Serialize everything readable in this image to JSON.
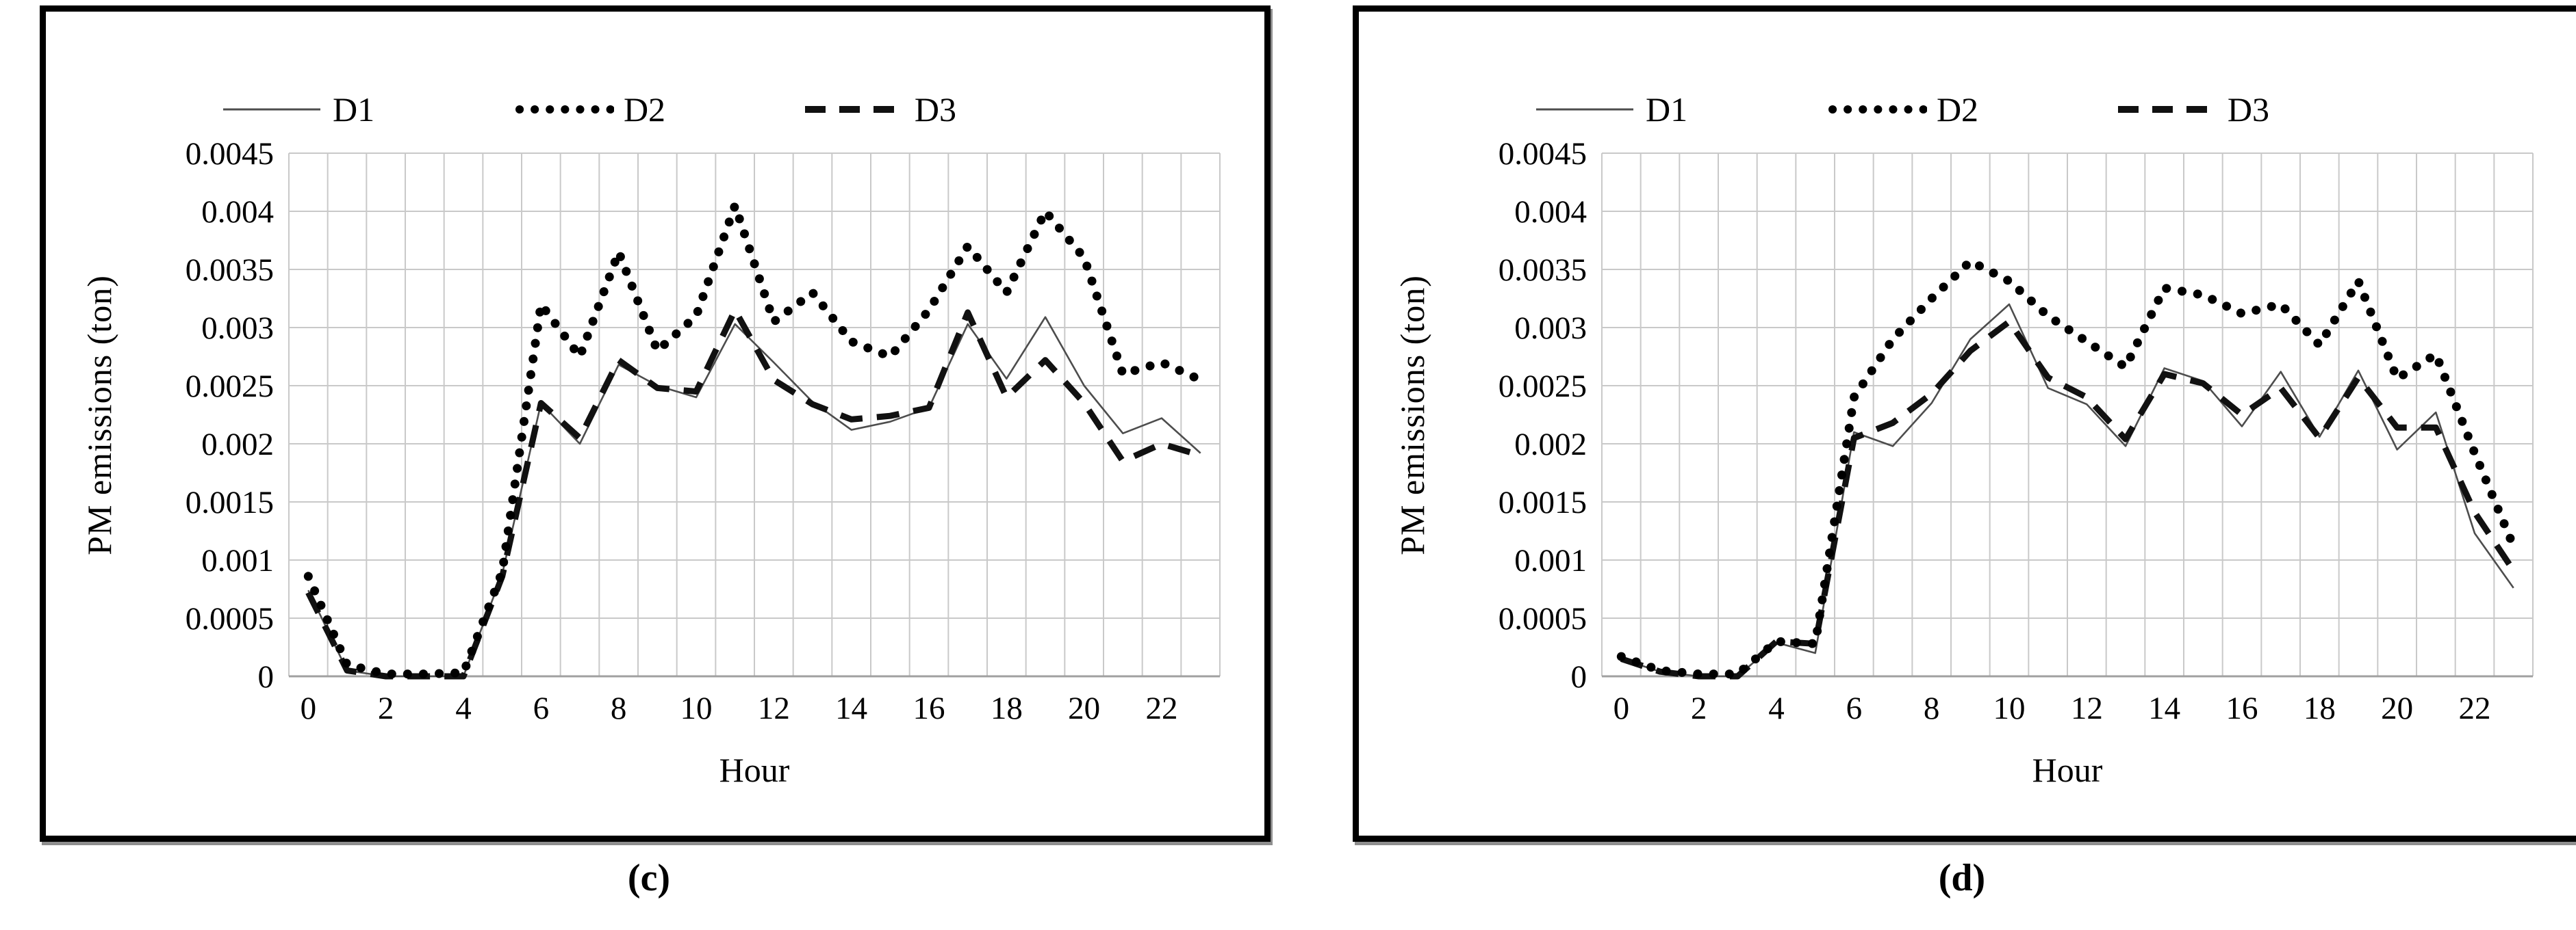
{
  "figure": {
    "panels": [
      {
        "id": "c",
        "caption": "(c)",
        "xlabel": "Hour",
        "ylabel": "PM emissions (ton)",
        "legend": [
          "D1",
          "D2",
          "D3"
        ]
      },
      {
        "id": "d",
        "caption": "(d)",
        "xlabel": "Hour",
        "ylabel": "PM emissions (ton)",
        "legend": [
          "D1",
          "D2",
          "D3"
        ]
      }
    ],
    "colors": {
      "grid": "#c9c9c9",
      "axis": "#a0a0a0",
      "d1": "#4d4d4d",
      "d2": "#000000",
      "d3": "#111111"
    }
  },
  "chart_data": [
    {
      "type": "line",
      "title": "",
      "xlabel": "Hour",
      "ylabel": "PM emissions (ton)",
      "x": [
        0,
        1,
        2,
        3,
        4,
        5,
        6,
        7,
        8,
        9,
        10,
        11,
        12,
        13,
        14,
        15,
        16,
        17,
        18,
        19,
        20,
        21,
        22,
        23
      ],
      "xticks": [
        0,
        2,
        4,
        6,
        8,
        10,
        12,
        14,
        16,
        18,
        20,
        22
      ],
      "ylim": [
        0,
        0.0045
      ],
      "ytick_step": 0.0005,
      "grid": true,
      "legend_position": "top",
      "series": [
        {
          "name": "D1",
          "style": "solid",
          "values": [
            0.00074,
            5e-05,
            0,
            0,
            0,
            0.00088,
            0.00235,
            0.002,
            0.00268,
            0.0025,
            0.0024,
            0.00303,
            0.0027,
            0.00236,
            0.00212,
            0.00219,
            0.00231,
            0.00303,
            0.00256,
            0.00309,
            0.0025,
            0.00209,
            0.00222,
            0.00192
          ]
        },
        {
          "name": "D2",
          "style": "dotted",
          "values": [
            0.00086,
            0.0001,
            2e-05,
            2e-05,
            3e-05,
            0.0009,
            0.0032,
            0.00275,
            0.00365,
            0.0028,
            0.0031,
            0.00405,
            0.00305,
            0.0033,
            0.00288,
            0.00275,
            0.00315,
            0.0037,
            0.0033,
            0.004,
            0.0036,
            0.0026,
            0.0027,
            0.00255
          ]
        },
        {
          "name": "D3",
          "style": "dashed",
          "values": [
            0.00072,
            5e-05,
            0,
            0,
            0,
            0.00086,
            0.00235,
            0.00205,
            0.00272,
            0.00248,
            0.00245,
            0.00315,
            0.00255,
            0.00234,
            0.00221,
            0.00224,
            0.00231,
            0.00313,
            0.0024,
            0.00272,
            0.00235,
            0.00185,
            0.002,
            0.0019
          ]
        }
      ]
    },
    {
      "type": "line",
      "title": "",
      "xlabel": "Hour",
      "ylabel": "PM emissions (ton)",
      "x": [
        0,
        1,
        2,
        3,
        4,
        5,
        6,
        7,
        8,
        9,
        10,
        11,
        12,
        13,
        14,
        15,
        16,
        17,
        18,
        19,
        20,
        21,
        22,
        23
      ],
      "xticks": [
        0,
        2,
        4,
        6,
        8,
        10,
        12,
        14,
        16,
        18,
        20,
        22
      ],
      "ylim": [
        0,
        0.0045
      ],
      "ytick_step": 0.0005,
      "grid": true,
      "legend_position": "top",
      "series": [
        {
          "name": "D1",
          "style": "solid",
          "values": [
            0.00015,
            4e-05,
            0,
            0,
            0.00029,
            0.0002,
            0.0021,
            0.00198,
            0.00235,
            0.0029,
            0.0032,
            0.00248,
            0.00234,
            0.00198,
            0.00265,
            0.00254,
            0.00215,
            0.00262,
            0.00206,
            0.00263,
            0.00195,
            0.00227,
            0.00123,
            0.00076
          ]
        },
        {
          "name": "D2",
          "style": "dotted",
          "values": [
            0.00017,
            5e-05,
            2e-05,
            2e-05,
            0.0003,
            0.00028,
            0.0024,
            0.0029,
            0.00325,
            0.00357,
            0.0034,
            0.0031,
            0.00288,
            0.00266,
            0.00334,
            0.00328,
            0.00312,
            0.0032,
            0.00285,
            0.0034,
            0.00256,
            0.00277,
            0.00192,
            0.00112
          ]
        },
        {
          "name": "D3",
          "style": "dashed",
          "values": [
            0.00015,
            4e-05,
            0,
            0,
            0.0003,
            0.00028,
            0.00205,
            0.00218,
            0.00243,
            0.0028,
            0.00305,
            0.00257,
            0.0024,
            0.00204,
            0.0026,
            0.00252,
            0.00225,
            0.00248,
            0.00205,
            0.00257,
            0.00214,
            0.00214,
            0.00141,
            0.00091
          ]
        }
      ]
    }
  ]
}
